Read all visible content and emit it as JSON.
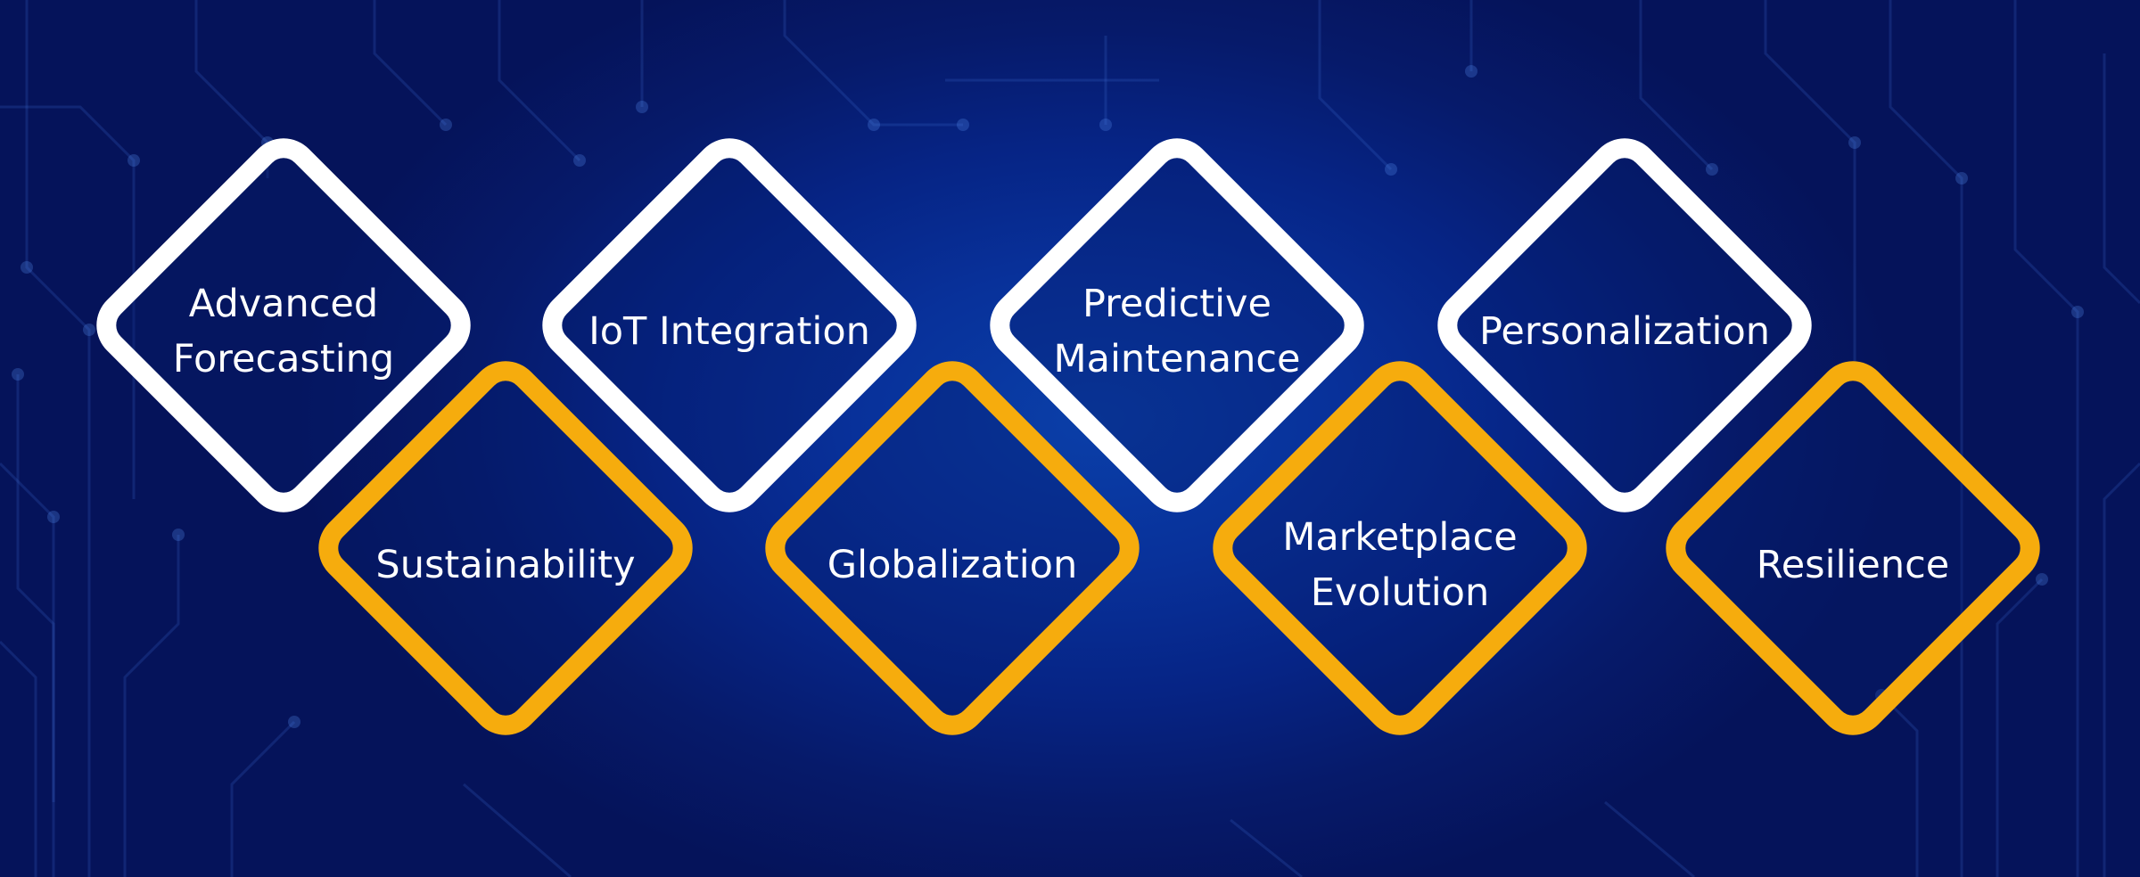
{
  "colors": {
    "background": "#062485",
    "top_ring": "#ffffff",
    "bottom_ring": "#f6ac0d",
    "text": "#ffffff"
  },
  "top_row": [
    {
      "label": "Advanced\nForecasting"
    },
    {
      "label": "IoT Integration"
    },
    {
      "label": "Predictive\nMaintenance"
    },
    {
      "label": "Personalization"
    }
  ],
  "bottom_row": [
    {
      "label": "Sustainability"
    },
    {
      "label": "Globalization"
    },
    {
      "label": "Marketplace\nEvolution"
    },
    {
      "label": "Resilience"
    }
  ]
}
